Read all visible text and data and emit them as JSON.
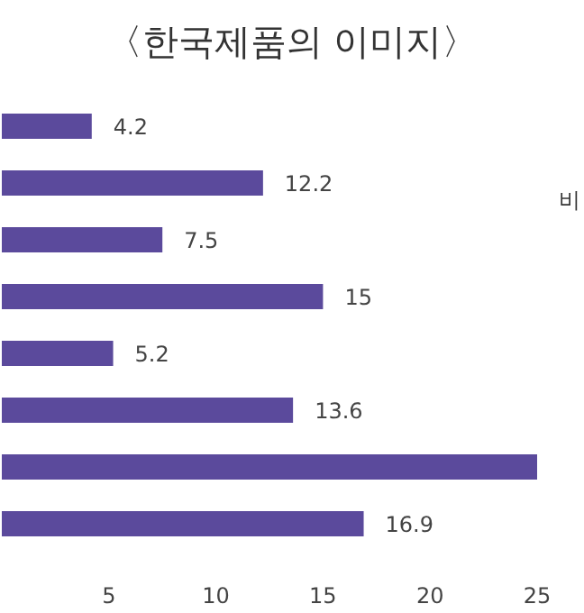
{
  "chart_data": {
    "type": "bar",
    "orientation": "horizontal",
    "title": "〈한국제품의 이미지〉",
    "categories": [
      null,
      null,
      null,
      null,
      null,
      null,
      null,
      null
    ],
    "values": [
      4.2,
      12.2,
      7.5,
      15,
      5.2,
      13.6,
      25,
      16.9
    ],
    "value_labels": [
      "4.2",
      "12.2",
      "7.5",
      "15",
      "5.2",
      "13.6",
      null,
      "16.9"
    ],
    "color": "#5b4a9c",
    "xlim": [
      0,
      25
    ],
    "xticks": [
      5,
      10,
      15,
      20,
      25
    ],
    "annotations": [
      "비"
    ]
  }
}
